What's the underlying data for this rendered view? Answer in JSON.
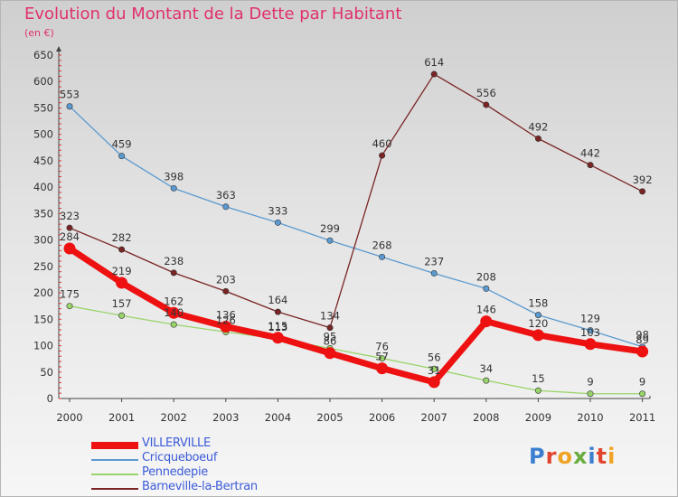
{
  "header": {
    "title": "Evolution du Montant de la Dette par Habitant",
    "unit": "(en €)"
  },
  "logo": {
    "letters": [
      "P",
      "r",
      "o",
      "x",
      "i",
      "t",
      "i"
    ],
    "colors": [
      "#3b7fd0",
      "#e2452f",
      "#f0a323",
      "#69ac3f",
      "#3b7fd0",
      "#e2452f",
      "#f0a323"
    ]
  },
  "chart_data": {
    "type": "line",
    "title": "Evolution du Montant de la Dette par Habitant",
    "xlabel": "",
    "ylabel": "(en €)",
    "x": [
      "2000",
      "2001",
      "2002",
      "2003",
      "2004",
      "2005",
      "2006",
      "2007",
      "2008",
      "2009",
      "2010",
      "2011"
    ],
    "ylim": [
      0,
      650
    ],
    "yticks": [
      0,
      50,
      100,
      150,
      200,
      250,
      300,
      350,
      400,
      450,
      500,
      550,
      600,
      650
    ],
    "grid": false,
    "legend_position": "bottom-left",
    "series": [
      {
        "name": "VILLERVILLE",
        "color": "#ee1111",
        "thick": true,
        "values": [
          284,
          219,
          162,
          136,
          115,
          86,
          57,
          31,
          146,
          120,
          103,
          89
        ]
      },
      {
        "name": "Cricqueboeuf",
        "color": "#5b9ad0",
        "thick": false,
        "values": [
          553,
          459,
          398,
          363,
          333,
          299,
          268,
          237,
          208,
          158,
          129,
          98
        ]
      },
      {
        "name": "Pennedepie",
        "color": "#99d46a",
        "thick": false,
        "values": [
          175,
          157,
          140,
          126,
          113,
          95,
          76,
          56,
          34,
          15,
          9,
          9
        ]
      },
      {
        "name": "Barneville-la-Bertran",
        "color": "#7a2424",
        "thick": false,
        "values": [
          323,
          282,
          238,
          203,
          164,
          134,
          460,
          614,
          556,
          492,
          442,
          392
        ]
      }
    ]
  }
}
